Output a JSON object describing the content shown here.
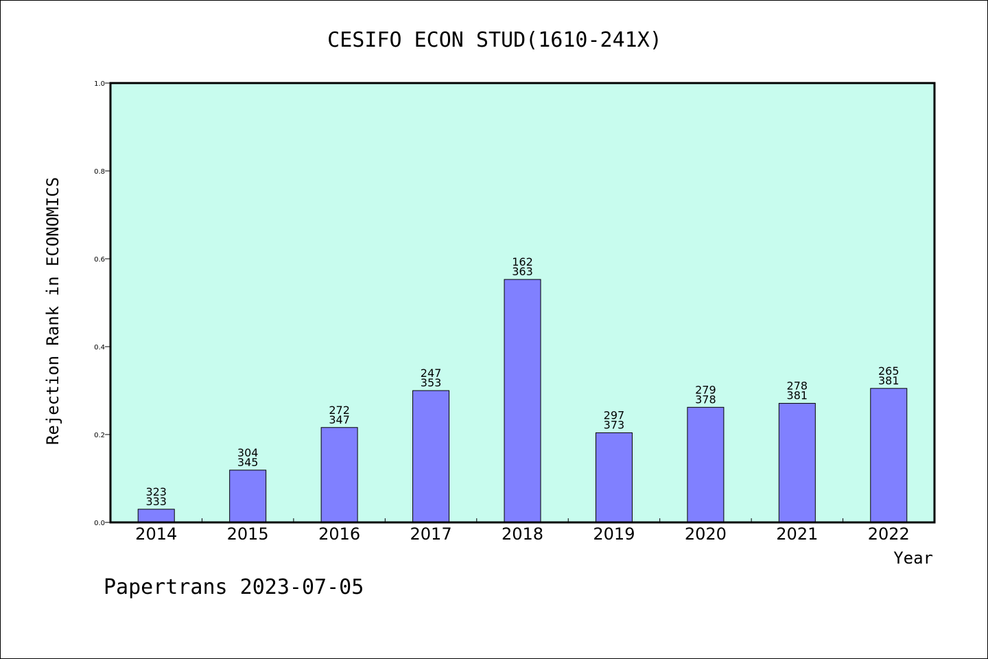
{
  "chart_data": {
    "type": "bar",
    "title": "CESIFO ECON STUD(1610-241X)",
    "xlabel": "Year",
    "ylabel": "Rejection Rank in ECONOMICS",
    "categories": [
      "2014",
      "2015",
      "2016",
      "2017",
      "2018",
      "2019",
      "2020",
      "2021",
      "2022"
    ],
    "values": [
      0.03,
      0.119,
      0.216,
      0.3,
      0.553,
      0.204,
      0.262,
      0.271,
      0.305
    ],
    "bar_labels_top": [
      "323",
      "304",
      "272",
      "247",
      "162",
      "297",
      "279",
      "278",
      "265"
    ],
    "bar_labels_bottom": [
      "333",
      "345",
      "347",
      "353",
      "363",
      "373",
      "378",
      "381",
      "381"
    ],
    "ylim": [
      0.0,
      1.0
    ],
    "yticks": [
      "0.0",
      "0.2",
      "0.4",
      "0.6",
      "0.8",
      "1.0"
    ],
    "grid": false,
    "colors": {
      "plot_background": "#c8fcee",
      "bar_fill": "#8080ff",
      "bar_stroke": "#000000",
      "axis": "#000000"
    }
  },
  "footer": {
    "text": "Papertrans 2023-07-05"
  }
}
